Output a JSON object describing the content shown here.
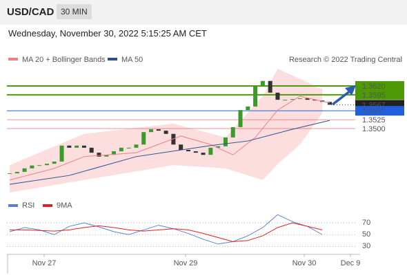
{
  "header": {
    "symbol": "USD/CAD",
    "timeframe": "30 MIN",
    "datetime": "Wednesday, November 30, 2022 5:15:25 AM CET"
  },
  "chart_data": [
    {
      "type": "candlestick",
      "legend": [
        "MA 20 + Bollinger Bands",
        "MA 50"
      ],
      "legend_colors": [
        "#f08080",
        "#2a4f8f"
      ],
      "credit": "Research © 2022 Trading Central",
      "xtick_labels": [
        "Nov 27",
        "Nov 29",
        "Nov 30",
        "Dec 9"
      ],
      "ylim": [
        1.332,
        1.3678
      ],
      "up_color": "#3c9a2a",
      "down_color": "#333333",
      "close": [
        1.3374,
        1.3378,
        1.3388,
        1.3396,
        1.3397,
        1.3401,
        1.3407,
        1.3452,
        1.3446,
        1.3452,
        1.3446,
        1.3432,
        1.3421,
        1.3426,
        1.3436,
        1.3446,
        1.3446,
        1.3455,
        1.349,
        1.3498,
        1.3494,
        1.3485,
        1.3455,
        1.344,
        1.3436,
        1.3432,
        1.3426,
        1.3446,
        1.345,
        1.3475,
        1.3504,
        1.3552,
        1.3562,
        1.362,
        1.3634,
        1.3601,
        1.3581,
        1.3581,
        1.3583,
        1.3585,
        1.3581,
        1.3579,
        1.3575,
        1.3567
      ],
      "ma20": {
        "x": [
          0,
          6,
          10,
          17,
          23,
          27,
          30,
          33,
          36,
          39,
          43
        ],
        "values": [
          1.3355,
          1.3388,
          1.3421,
          1.3432,
          1.3479,
          1.3455,
          1.3426,
          1.3475,
          1.3552,
          1.3591,
          1.3572
        ],
        "color": "#f08080"
      },
      "ma50": {
        "x": [
          0,
          8,
          17,
          27,
          32,
          38,
          43
        ],
        "values": [
          1.3343,
          1.3368,
          1.3421,
          1.3452,
          1.3465,
          1.3498,
          1.3523
        ],
        "color": "#2a4f8f"
      },
      "bollinger": {
        "x": [
          0,
          10,
          22,
          29,
          34,
          36,
          39,
          42
        ],
        "upper": [
          1.3397,
          1.3485,
          1.3514,
          1.3475,
          1.3591,
          1.3668,
          1.364,
          1.361
        ],
        "lower": [
          1.332,
          1.3355,
          1.3397,
          1.3388,
          1.3355,
          1.34,
          1.3455,
          1.3543
        ],
        "color": "#fcdede"
      },
      "levels": [
        {
          "value": 1.362,
          "label": "1.3620",
          "color": "#4e9a06",
          "boxed": true
        },
        {
          "value": 1.3595,
          "label": "1.3595",
          "color": "#4e9a06",
          "boxed": true
        },
        {
          "value": 1.3567,
          "label": "1.3567",
          "color": "#222222",
          "boxed": true
        },
        {
          "value": 1.355,
          "label": "1.3550",
          "color": "#1f5fe0",
          "boxed": true
        },
        {
          "value": 1.3525,
          "label": "1.3525",
          "color": "#e05050",
          "boxed": false
        },
        {
          "value": 1.35,
          "label": "1.3500",
          "color": "#e05050",
          "boxed": false
        }
      ]
    },
    {
      "type": "line",
      "ylim": [
        14,
        110
      ],
      "yticks": [
        70,
        50,
        30
      ],
      "series": [
        {
          "name": "RSI",
          "color": "#5b7fd6",
          "x": [
            0,
            2,
            4,
            6,
            8,
            10,
            12,
            14,
            16,
            18,
            20,
            22,
            24,
            26,
            28,
            30,
            32,
            34,
            36,
            38,
            40,
            42
          ],
          "values": [
            55,
            62,
            58,
            50,
            64,
            70,
            63,
            55,
            50,
            58,
            66,
            60,
            52,
            42,
            34,
            38,
            48,
            62,
            84,
            72,
            64,
            50
          ]
        },
        {
          "name": "9MA",
          "color": "#e02020",
          "x": [
            0,
            2,
            4,
            6,
            8,
            10,
            12,
            14,
            16,
            18,
            20,
            22,
            24,
            26,
            28,
            30,
            32,
            34,
            36,
            38,
            40,
            42
          ],
          "values": [
            58,
            58,
            57,
            56,
            58,
            62,
            65,
            62,
            58,
            56,
            58,
            60,
            58,
            52,
            45,
            38,
            40,
            48,
            62,
            70,
            64,
            58
          ]
        }
      ]
    }
  ]
}
